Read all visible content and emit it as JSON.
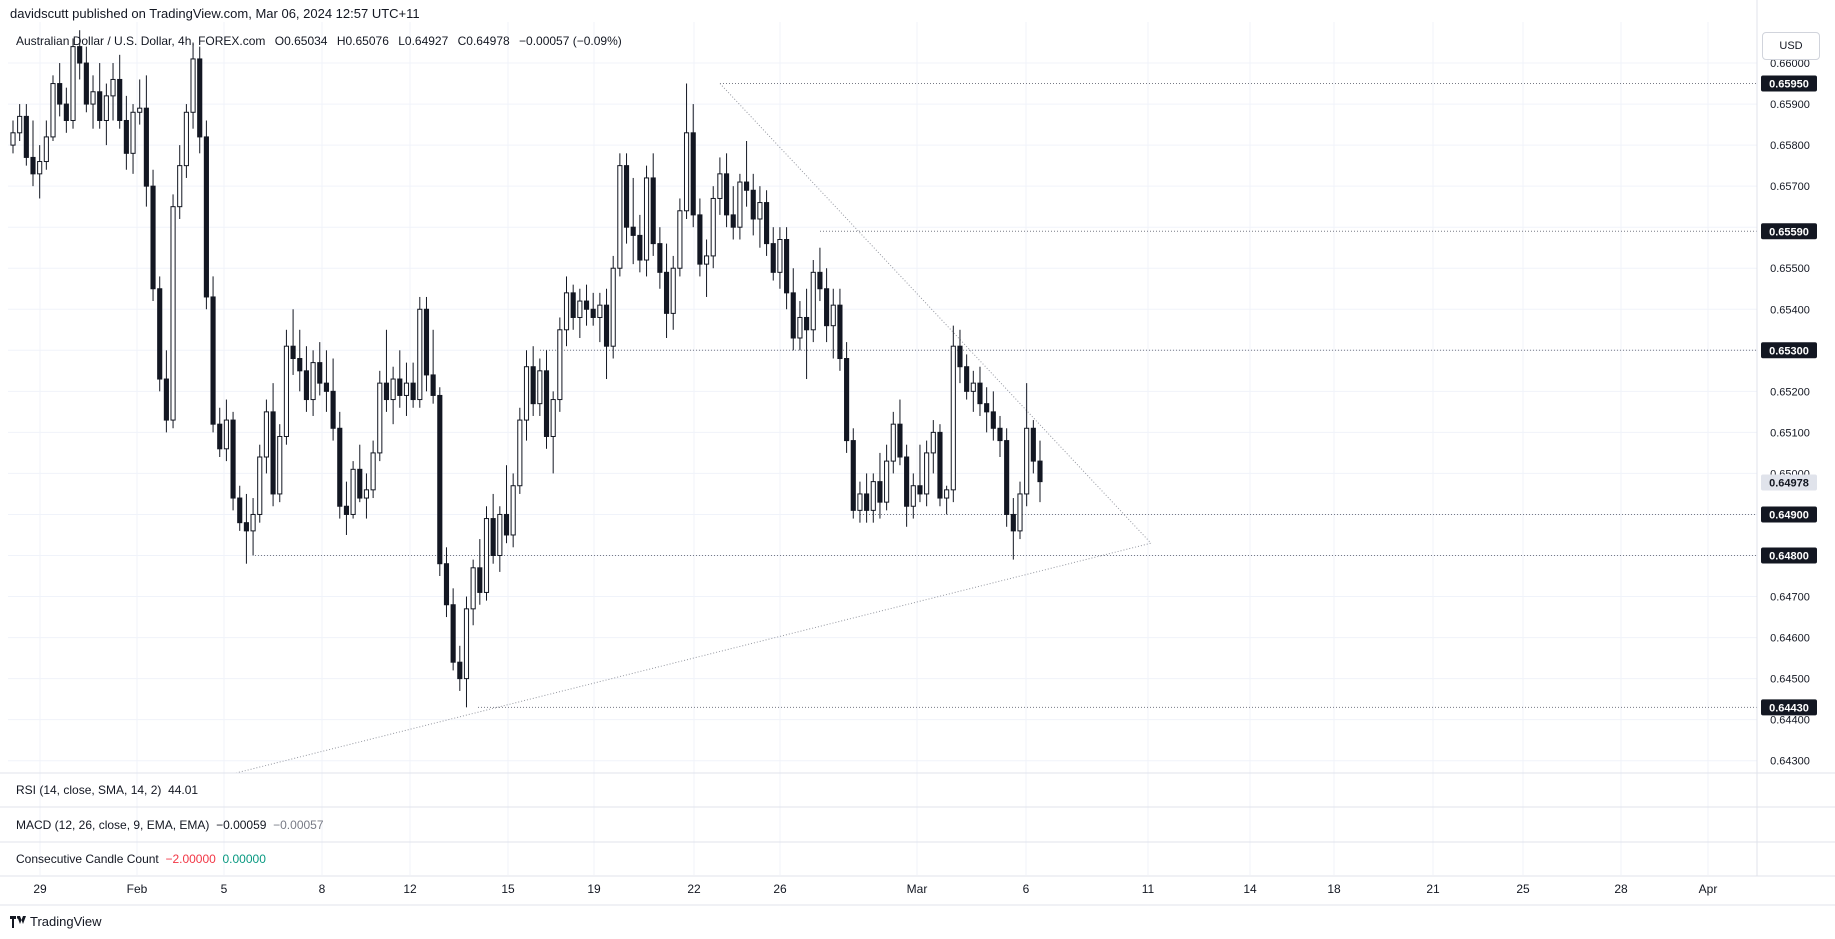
{
  "header": {
    "published": "davidscutt published on TradingView.com, Mar 06, 2024 12:57 UTC+11"
  },
  "symbol": {
    "name": "Australian Dollar / U.S. Dollar, 4h, FOREX.com",
    "open": "O0.65034",
    "high": "H0.65076",
    "low": "L0.64927",
    "close": "C0.64978",
    "change": "−0.00057 (−0.09%)"
  },
  "currency": "USD",
  "indicators": {
    "rsi": {
      "label": "RSI (14, close, SMA, 14, 2)",
      "value": "44.01"
    },
    "macd": {
      "label": "MACD (12, 26, close, 9, EMA, EMA)",
      "value1": "−0.00059",
      "value2": "−0.00057"
    },
    "ccc": {
      "label": "Consecutive Candle Count",
      "value1": "−2.00000",
      "value2": "0.00000"
    }
  },
  "footer": {
    "brand": "TradingView"
  },
  "chart_data": {
    "type": "candlestick",
    "y_ticks": [
      "0.66000",
      "0.65900",
      "0.65800",
      "0.65700",
      "0.65600",
      "0.65500",
      "0.65400",
      "0.65300",
      "0.65200",
      "0.65100",
      "0.65000",
      "0.64900",
      "0.64800",
      "0.64700",
      "0.64600",
      "0.64500",
      "0.64400",
      "0.64300"
    ],
    "ylim": [
      0.6427,
      0.661
    ],
    "x_ticks": [
      "29",
      "Feb",
      "5",
      "8",
      "12",
      "15",
      "19",
      "22",
      "26",
      "Mar",
      "6",
      "11",
      "14",
      "18",
      "21",
      "25",
      "28",
      "Apr"
    ],
    "price_labels": [
      {
        "value": 0.6595,
        "text": "0.65950",
        "style": "dark"
      },
      {
        "value": 0.6559,
        "text": "0.65590",
        "style": "dark"
      },
      {
        "value": 0.653,
        "text": "0.65300",
        "style": "dark"
      },
      {
        "value": 0.64978,
        "text": "0.64978",
        "style": "current"
      },
      {
        "value": 0.649,
        "text": "0.64900",
        "style": "dark"
      },
      {
        "value": 0.648,
        "text": "0.64800",
        "style": "dark"
      },
      {
        "value": 0.6443,
        "text": "0.64430",
        "style": "dark"
      }
    ],
    "horizontal_levels": [
      0.6595,
      0.6559,
      0.653,
      0.649,
      0.648,
      0.6443
    ],
    "triangle_apex": 0.6483,
    "candles": [
      [
        0.658,
        0.6586,
        0.6578,
        0.6583
      ],
      [
        0.6583,
        0.659,
        0.6581,
        0.6587
      ],
      [
        0.6587,
        0.659,
        0.6575,
        0.6577
      ],
      [
        0.6577,
        0.6586,
        0.657,
        0.6573
      ],
      [
        0.6573,
        0.658,
        0.6567,
        0.6576
      ],
      [
        0.6576,
        0.6586,
        0.6574,
        0.6582
      ],
      [
        0.6582,
        0.6597,
        0.6581,
        0.6595
      ],
      [
        0.6595,
        0.66,
        0.6587,
        0.659
      ],
      [
        0.659,
        0.6594,
        0.6583,
        0.6586
      ],
      [
        0.6586,
        0.6606,
        0.6584,
        0.6604
      ],
      [
        0.6604,
        0.6608,
        0.6596,
        0.66
      ],
      [
        0.66,
        0.6604,
        0.6588,
        0.659
      ],
      [
        0.659,
        0.6597,
        0.6584,
        0.6593
      ],
      [
        0.6593,
        0.66,
        0.6584,
        0.6586
      ],
      [
        0.6586,
        0.6595,
        0.658,
        0.6592
      ],
      [
        0.6592,
        0.66,
        0.6586,
        0.6596
      ],
      [
        0.6596,
        0.6602,
        0.6584,
        0.6586
      ],
      [
        0.6586,
        0.6592,
        0.6574,
        0.6578
      ],
      [
        0.6578,
        0.659,
        0.6573,
        0.6588
      ],
      [
        0.6588,
        0.6596,
        0.6585,
        0.6589
      ],
      [
        0.6589,
        0.6597,
        0.6565,
        0.657
      ],
      [
        0.657,
        0.6574,
        0.6542,
        0.6545
      ],
      [
        0.6545,
        0.6548,
        0.652,
        0.6523
      ],
      [
        0.6523,
        0.653,
        0.651,
        0.6513
      ],
      [
        0.6513,
        0.6568,
        0.6511,
        0.6565
      ],
      [
        0.6565,
        0.658,
        0.6562,
        0.6575
      ],
      [
        0.6575,
        0.659,
        0.6572,
        0.6588
      ],
      [
        0.6588,
        0.6605,
        0.6584,
        0.6601
      ],
      [
        0.6601,
        0.6604,
        0.6578,
        0.6582
      ],
      [
        0.6582,
        0.6586,
        0.654,
        0.6543
      ],
      [
        0.6543,
        0.6548,
        0.651,
        0.6512
      ],
      [
        0.6512,
        0.6516,
        0.6504,
        0.6506
      ],
      [
        0.6506,
        0.6518,
        0.6503,
        0.6513
      ],
      [
        0.6513,
        0.6515,
        0.6491,
        0.6494
      ],
      [
        0.6494,
        0.6497,
        0.6486,
        0.6488
      ],
      [
        0.6488,
        0.6495,
        0.6478,
        0.6486
      ],
      [
        0.6486,
        0.6494,
        0.648,
        0.649
      ],
      [
        0.649,
        0.6507,
        0.6488,
        0.6504
      ],
      [
        0.6504,
        0.6518,
        0.65,
        0.6515
      ],
      [
        0.6515,
        0.6522,
        0.6492,
        0.6495
      ],
      [
        0.6495,
        0.6512,
        0.6493,
        0.6509
      ],
      [
        0.6509,
        0.6535,
        0.6507,
        0.6531
      ],
      [
        0.6531,
        0.654,
        0.6524,
        0.6528
      ],
      [
        0.6528,
        0.6535,
        0.652,
        0.6525
      ],
      [
        0.6525,
        0.6531,
        0.6515,
        0.6518
      ],
      [
        0.6518,
        0.653,
        0.6514,
        0.6527
      ],
      [
        0.6527,
        0.6532,
        0.6519,
        0.6522
      ],
      [
        0.6522,
        0.653,
        0.6515,
        0.652
      ],
      [
        0.652,
        0.6528,
        0.6508,
        0.6511
      ],
      [
        0.6511,
        0.6515,
        0.6489,
        0.6492
      ],
      [
        0.6492,
        0.6498,
        0.6485,
        0.649
      ],
      [
        0.649,
        0.6503,
        0.6489,
        0.6501
      ],
      [
        0.6501,
        0.6507,
        0.6493,
        0.6494
      ],
      [
        0.6494,
        0.65,
        0.6489,
        0.6496
      ],
      [
        0.6496,
        0.6508,
        0.6494,
        0.6505
      ],
      [
        0.6505,
        0.6525,
        0.6503,
        0.6522
      ],
      [
        0.6522,
        0.6535,
        0.6515,
        0.6518
      ],
      [
        0.6518,
        0.6526,
        0.6512,
        0.6523
      ],
      [
        0.6523,
        0.653,
        0.6516,
        0.6519
      ],
      [
        0.6519,
        0.6527,
        0.6514,
        0.6522
      ],
      [
        0.6522,
        0.6527,
        0.6516,
        0.6518
      ],
      [
        0.6518,
        0.6543,
        0.6516,
        0.654
      ],
      [
        0.654,
        0.6543,
        0.652,
        0.6524
      ],
      [
        0.6524,
        0.6535,
        0.6517,
        0.6519
      ],
      [
        0.6519,
        0.6521,
        0.6475,
        0.6478
      ],
      [
        0.6478,
        0.6482,
        0.6465,
        0.6468
      ],
      [
        0.6468,
        0.6472,
        0.6452,
        0.6454
      ],
      [
        0.6454,
        0.6458,
        0.6447,
        0.645
      ],
      [
        0.645,
        0.647,
        0.6443,
        0.6467
      ],
      [
        0.6467,
        0.6479,
        0.6463,
        0.6477
      ],
      [
        0.6477,
        0.6484,
        0.6468,
        0.6471
      ],
      [
        0.6471,
        0.6492,
        0.6469,
        0.6489
      ],
      [
        0.6489,
        0.6495,
        0.6478,
        0.648
      ],
      [
        0.648,
        0.6492,
        0.6476,
        0.649
      ],
      [
        0.649,
        0.6502,
        0.6483,
        0.6485
      ],
      [
        0.6485,
        0.65,
        0.6482,
        0.6497
      ],
      [
        0.6497,
        0.6516,
        0.6495,
        0.6513
      ],
      [
        0.6513,
        0.653,
        0.6508,
        0.6526
      ],
      [
        0.6526,
        0.6531,
        0.6514,
        0.6517
      ],
      [
        0.6517,
        0.6528,
        0.6514,
        0.6525
      ],
      [
        0.6525,
        0.653,
        0.6506,
        0.6509
      ],
      [
        0.6509,
        0.652,
        0.65,
        0.6518
      ],
      [
        0.6518,
        0.6538,
        0.6515,
        0.6535
      ],
      [
        0.6535,
        0.6548,
        0.6531,
        0.6544
      ],
      [
        0.6544,
        0.6546,
        0.6535,
        0.6538
      ],
      [
        0.6538,
        0.6545,
        0.6533,
        0.6542
      ],
      [
        0.6542,
        0.6546,
        0.6536,
        0.654
      ],
      [
        0.654,
        0.6544,
        0.6536,
        0.6538
      ],
      [
        0.6538,
        0.6544,
        0.6532,
        0.6541
      ],
      [
        0.6541,
        0.6545,
        0.6523,
        0.6531
      ],
      [
        0.6531,
        0.6553,
        0.6528,
        0.655
      ],
      [
        0.655,
        0.6578,
        0.6548,
        0.6575
      ],
      [
        0.6575,
        0.6578,
        0.6556,
        0.656
      ],
      [
        0.656,
        0.6572,
        0.6551,
        0.6558
      ],
      [
        0.6558,
        0.6563,
        0.6549,
        0.6552
      ],
      [
        0.6552,
        0.6575,
        0.6548,
        0.6572
      ],
      [
        0.6572,
        0.6578,
        0.6553,
        0.6556
      ],
      [
        0.6556,
        0.656,
        0.6545,
        0.6549
      ],
      [
        0.6549,
        0.6556,
        0.6533,
        0.6539
      ],
      [
        0.6539,
        0.6553,
        0.6535,
        0.655
      ],
      [
        0.655,
        0.6567,
        0.6548,
        0.6564
      ],
      [
        0.6564,
        0.6595,
        0.6562,
        0.6583
      ],
      [
        0.6583,
        0.659,
        0.656,
        0.6563
      ],
      [
        0.6563,
        0.6567,
        0.6548,
        0.6551
      ],
      [
        0.6551,
        0.6557,
        0.6543,
        0.6553
      ],
      [
        0.6553,
        0.657,
        0.655,
        0.6567
      ],
      [
        0.6567,
        0.6577,
        0.6563,
        0.6573
      ],
      [
        0.6573,
        0.6578,
        0.656,
        0.6563
      ],
      [
        0.6563,
        0.657,
        0.6557,
        0.656
      ],
      [
        0.656,
        0.6573,
        0.6557,
        0.6571
      ],
      [
        0.6571,
        0.6581,
        0.6565,
        0.6569
      ],
      [
        0.6569,
        0.6573,
        0.6558,
        0.6562
      ],
      [
        0.6562,
        0.657,
        0.6555,
        0.6566
      ],
      [
        0.6566,
        0.6569,
        0.6553,
        0.6556
      ],
      [
        0.6556,
        0.656,
        0.6547,
        0.6549
      ],
      [
        0.6549,
        0.656,
        0.6545,
        0.6557
      ],
      [
        0.6557,
        0.656,
        0.654,
        0.6544
      ],
      [
        0.6544,
        0.655,
        0.653,
        0.6533
      ],
      [
        0.6533,
        0.6542,
        0.653,
        0.6538
      ],
      [
        0.6538,
        0.6545,
        0.6523,
        0.6535
      ],
      [
        0.6535,
        0.6552,
        0.6532,
        0.6549
      ],
      [
        0.6549,
        0.6555,
        0.6542,
        0.6545
      ],
      [
        0.6545,
        0.655,
        0.6532,
        0.6536
      ],
      [
        0.6536,
        0.6545,
        0.6528,
        0.6541
      ],
      [
        0.6541,
        0.6545,
        0.6525,
        0.6528
      ],
      [
        0.6528,
        0.6532,
        0.6505,
        0.6508
      ],
      [
        0.6508,
        0.6511,
        0.6489,
        0.6491
      ],
      [
        0.6491,
        0.6498,
        0.6488,
        0.6495
      ],
      [
        0.6495,
        0.65,
        0.6488,
        0.6491
      ],
      [
        0.6491,
        0.65,
        0.6488,
        0.6498
      ],
      [
        0.6498,
        0.6505,
        0.6489,
        0.6493
      ],
      [
        0.6493,
        0.6507,
        0.6491,
        0.6503
      ],
      [
        0.6503,
        0.6515,
        0.65,
        0.6512
      ],
      [
        0.6512,
        0.6518,
        0.6502,
        0.6504
      ],
      [
        0.6504,
        0.6507,
        0.6487,
        0.6492
      ],
      [
        0.6492,
        0.65,
        0.6489,
        0.6497
      ],
      [
        0.6497,
        0.6507,
        0.6493,
        0.6495
      ],
      [
        0.6495,
        0.6508,
        0.6492,
        0.6505
      ],
      [
        0.6505,
        0.6513,
        0.65,
        0.651
      ],
      [
        0.651,
        0.6512,
        0.6492,
        0.6494
      ],
      [
        0.6494,
        0.6497,
        0.649,
        0.6496
      ],
      [
        0.6496,
        0.6536,
        0.6493,
        0.6531
      ],
      [
        0.6531,
        0.6535,
        0.6522,
        0.6526
      ],
      [
        0.6526,
        0.6529,
        0.6518,
        0.652
      ],
      [
        0.652,
        0.6525,
        0.6515,
        0.6522
      ],
      [
        0.6522,
        0.6526,
        0.6514,
        0.6517
      ],
      [
        0.6517,
        0.6521,
        0.651,
        0.6515
      ],
      [
        0.6515,
        0.652,
        0.6508,
        0.6511
      ],
      [
        0.6511,
        0.6514,
        0.6504,
        0.6508
      ],
      [
        0.6508,
        0.6511,
        0.6487,
        0.649
      ],
      [
        0.649,
        0.6494,
        0.6479,
        0.6486
      ],
      [
        0.6486,
        0.6498,
        0.6484,
        0.6495
      ],
      [
        0.6495,
        0.6522,
        0.6492,
        0.6511
      ],
      [
        0.6511,
        0.6513,
        0.65,
        0.6503
      ],
      [
        0.6503,
        0.6508,
        0.6493,
        0.6498
      ]
    ]
  }
}
